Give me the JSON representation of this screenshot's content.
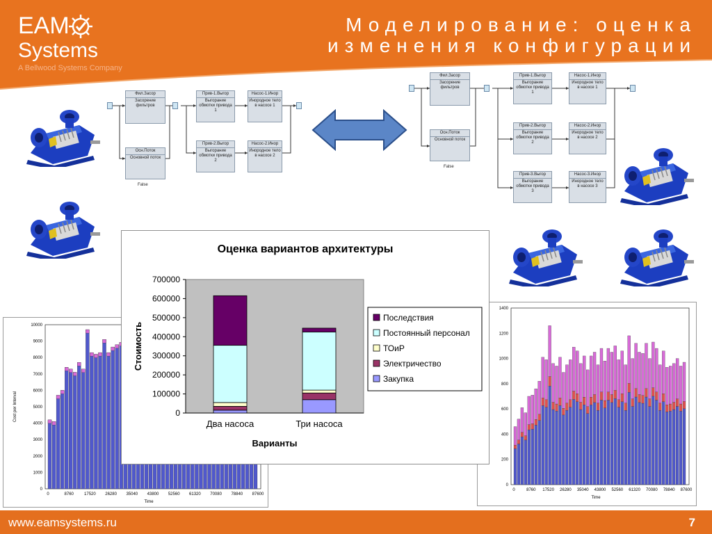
{
  "title": {
    "line1": "Моделирование: оценка",
    "line2": "изменения конфигурации"
  },
  "logo": {
    "word1": "EAM",
    "word2": "Systems",
    "subtitle": "A Bellwood Systems Company",
    "icon": "gear-check-icon"
  },
  "footer": {
    "url": "www.eamsystems.ru",
    "page": "7"
  },
  "diagram_left": {
    "blocks": [
      {
        "head": "Фил.Засор",
        "body": "Засорение фильтров"
      },
      {
        "head": "Прив-1.Выгор",
        "body": "Выгорание обмотки привода 1"
      },
      {
        "head": "Насос-1.Инор",
        "body": "Инородное тело в насосе 1"
      },
      {
        "head": "Прив-2.Выгор",
        "body": "Выгорание обмотки привода 2"
      },
      {
        "head": "Насос-2.Инор",
        "body": "Инородное тело в насосе 2"
      },
      {
        "head": "Осн.Поток",
        "body": "Основной поток"
      }
    ],
    "false_label": "False"
  },
  "diagram_right": {
    "blocks": [
      {
        "head": "Фил.Засор",
        "body": "Засорение фильтров"
      },
      {
        "head": "Прив-1.Выгор",
        "body": "Выгорание обмотки привода 1"
      },
      {
        "head": "Насос-1.Инор",
        "body": "Инородное тело в насосе 1"
      },
      {
        "head": "Прив-2.Выгор",
        "body": "Выгорание обмотки привода 2"
      },
      {
        "head": "Насос-2.Инор",
        "body": "Инородное тело в насосе 2"
      },
      {
        "head": "Прив-3.Выгор",
        "body": "Выгорание обмотки привода 3"
      },
      {
        "head": "Насос-3.Инор",
        "body": "Инородное тело в насосе 3"
      },
      {
        "head": "Осн.Поток",
        "body": "Основной поток"
      }
    ],
    "false_label": "False"
  },
  "colors": {
    "header_orange": "#e8731f",
    "footer_orange": "#e46f1e",
    "arrow_blue": "#5b86c7",
    "pump_blue": "#1c3ec0"
  },
  "chart_data": [
    {
      "type": "bar",
      "stacked": true,
      "title": "Оценка вариантов архитектуры",
      "xlabel": "Варианты",
      "ylabel": "Стоимость",
      "categories": [
        "Два насоса",
        "Три насоса"
      ],
      "ylim": [
        0,
        700000
      ],
      "yticks": [
        "0",
        "100000",
        "200000",
        "300000",
        "400000",
        "500000",
        "600000",
        "700000"
      ],
      "legend_position": "right",
      "series": [
        {
          "name": "Закупка",
          "color": "#9999ff",
          "values": [
            15000,
            70000
          ]
        },
        {
          "name": "Электричество",
          "color": "#993366",
          "values": [
            20000,
            35000
          ]
        },
        {
          "name": "ТОиР",
          "color": "#ffffcc",
          "values": [
            20000,
            15000
          ]
        },
        {
          "name": "Постоянный персонал",
          "color": "#ccffff",
          "values": [
            300000,
            305000
          ]
        },
        {
          "name": "Последствия",
          "color": "#660066",
          "values": [
            260000,
            20000
          ]
        }
      ],
      "legend_order": [
        "Последствия",
        "Постоянный персонал",
        "ТОиР",
        "Электричество",
        "Закупка"
      ]
    },
    {
      "type": "bar",
      "stacked": true,
      "xlabel": "Time",
      "ylabel": "Cost per Interval",
      "ylim": [
        0,
        10000
      ],
      "yticks": [
        "0",
        "1000",
        "2000",
        "3000",
        "4000",
        "5000",
        "6000",
        "7000",
        "8000",
        "9000",
        "10000"
      ],
      "xticks": [
        "0",
        "8760",
        "17520",
        "26280",
        "35040",
        "43800",
        "52560",
        "61320",
        "70080",
        "78840",
        "87600"
      ],
      "series_colors": [
        "#4a52c8",
        "#d86ad8"
      ],
      "visible_totals": [
        4200,
        4100,
        5700,
        6000,
        7400,
        7300,
        7100,
        7700,
        7300,
        9700,
        8300,
        8200,
        8300,
        9100,
        8300
      ]
    },
    {
      "type": "bar",
      "stacked": true,
      "xlabel": "Time",
      "ylim": [
        0,
        1400
      ],
      "yticks": [
        "0",
        "200",
        "400",
        "600",
        "800",
        "1000",
        "1200",
        "1400"
      ],
      "xticks": [
        "0",
        "8760",
        "17520",
        "26280",
        "35040",
        "43800",
        "52560",
        "61320",
        "70080",
        "78840",
        "87600"
      ],
      "series_colors": [
        "#4a52c8",
        "#e05050",
        "#d86ad8"
      ],
      "totals": [
        460,
        520,
        610,
        570,
        700,
        710,
        760,
        820,
        1010,
        990,
        1260,
        960,
        940,
        1010,
        890,
        950,
        990,
        1090,
        1060,
        960,
        1020,
        910,
        1020,
        1050,
        950,
        1080,
        980,
        1080,
        1050,
        1100,
        990,
        1060,
        950,
        1180,
        1000,
        1120,
        1050,
        1040,
        1120,
        1000,
        1130,
        1080,
        950,
        1060,
        930,
        940,
        960,
        1000,
        940,
        970
      ]
    }
  ]
}
